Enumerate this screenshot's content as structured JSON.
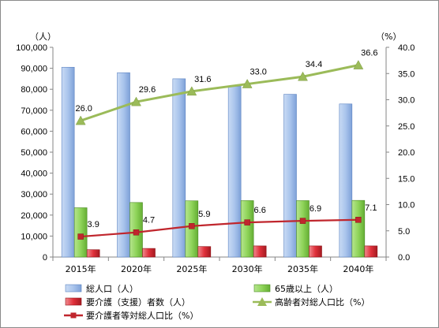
{
  "chart_data": {
    "type": "bar",
    "categories": [
      "2015年",
      "2020年",
      "2025年",
      "2030年",
      "2035年",
      "2040年"
    ],
    "series": [
      {
        "name": "総人口（人）",
        "type": "bar",
        "axis": "left",
        "color": "#9db9e6",
        "values": [
          90500,
          87900,
          85000,
          81400,
          77600,
          73000
        ]
      },
      {
        "name": "65歳以上（人）",
        "type": "bar",
        "axis": "left",
        "color": "#8fd45a",
        "values": [
          23500,
          26000,
          26800,
          26900,
          26900,
          27000
        ]
      },
      {
        "name": "要介護（支援）者数（人）",
        "type": "bar",
        "axis": "left",
        "color": "#e0303a",
        "values": [
          3500,
          4100,
          5000,
          5300,
          5300,
          5300
        ]
      },
      {
        "name": "高齢者対総人口比（%）",
        "type": "line",
        "axis": "right",
        "color": "#9bbb59",
        "values": [
          26.0,
          29.6,
          31.6,
          33.0,
          34.4,
          36.6
        ],
        "labels": [
          "26.0",
          "29.6",
          "31.6",
          "33.0",
          "34.4",
          "36.6"
        ]
      },
      {
        "name": "要介護者等対総人口比（%）",
        "type": "line",
        "axis": "right",
        "color": "#c0262d",
        "values": [
          3.9,
          4.7,
          5.9,
          6.6,
          6.9,
          7.1
        ],
        "labels": [
          "3.9",
          "4.7",
          "5.9",
          "6.6",
          "6.9",
          "7.1"
        ]
      }
    ],
    "left_axis": {
      "unit": "（人）",
      "ylim": [
        0,
        100000
      ],
      "ticks": [
        "0",
        "10,000",
        "20,000",
        "30,000",
        "40,000",
        "50,000",
        "60,000",
        "70,000",
        "80,000",
        "90,000",
        "100,000"
      ]
    },
    "right_axis": {
      "unit": "（%）",
      "ylim": [
        0,
        40
      ],
      "ticks": [
        "0.0",
        "5.0",
        "10.0",
        "15.0",
        "20.0",
        "25.0",
        "30.0",
        "35.0",
        "40.0"
      ]
    },
    "grid": false,
    "legend_position": "bottom"
  }
}
